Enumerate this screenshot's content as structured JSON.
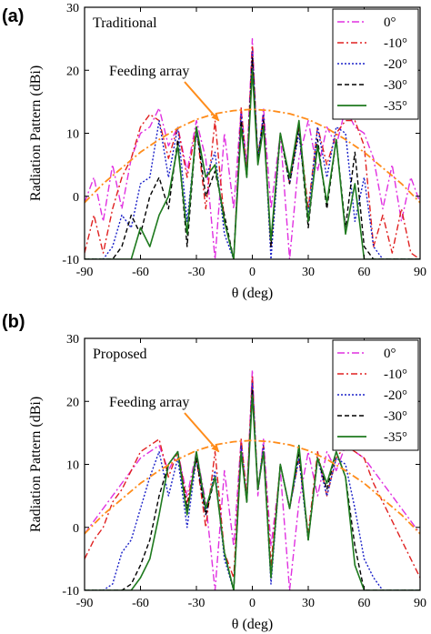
{
  "chart_data": [
    {
      "type": "line",
      "panel_label": "(a)",
      "title": "Traditional",
      "xlabel": "θ (deg)",
      "ylabel": "Radiation Pattern (dBi)",
      "xlim": [
        -90,
        90
      ],
      "ylim": [
        -10,
        30
      ],
      "xticks": [
        "-90",
        "-60",
        "-30",
        "0",
        "30",
        "60",
        "90"
      ],
      "yticks": [
        "-10",
        "0",
        "10",
        "20",
        "30"
      ],
      "legend_position": "top-right",
      "grid": false,
      "annotation": {
        "text": "Feeding array",
        "arrow_to": [
          -18,
          12
        ]
      },
      "series": [
        {
          "name": "0°",
          "color": "#e030e0",
          "dash": "8,3,2,3",
          "x": [
            -90,
            -85,
            -80,
            -75,
            -70,
            -65,
            -60,
            -55,
            -50,
            -45,
            -40,
            -35,
            -30,
            -25,
            -20,
            -15,
            -10,
            -6,
            -3,
            0,
            3,
            6,
            10,
            15,
            20,
            25,
            30,
            35,
            40,
            45,
            50,
            55,
            60,
            65,
            70,
            75,
            80,
            85,
            90
          ],
          "y": [
            -1,
            3,
            -4,
            5,
            -2,
            6,
            10,
            11,
            14,
            8,
            11,
            4,
            12,
            6,
            -10,
            10,
            -2,
            14,
            5,
            25,
            5,
            14,
            -2,
            10,
            -10,
            6,
            12,
            4,
            11,
            8,
            14,
            11,
            10,
            6,
            -2,
            5,
            -4,
            3,
            -1
          ]
        },
        {
          "name": "-10°",
          "color": "#e02020",
          "dash": "7,3,2,3",
          "x": [
            -90,
            -85,
            -80,
            -75,
            -70,
            -65,
            -60,
            -55,
            -50,
            -45,
            -40,
            -35,
            -30,
            -25,
            -20,
            -15,
            -10,
            -6,
            -3,
            0,
            3,
            6,
            10,
            15,
            20,
            25,
            30,
            35,
            40,
            45,
            50,
            55,
            60,
            65,
            70,
            75,
            80,
            85,
            90
          ],
          "y": [
            -9,
            -3,
            -9,
            -2,
            3,
            6,
            11,
            13,
            12,
            6,
            11,
            3,
            11,
            -2,
            12,
            -4,
            -10,
            14,
            4,
            24,
            6,
            13,
            -8,
            10,
            2,
            11,
            -2,
            11,
            5,
            10,
            12,
            12,
            8,
            -8,
            -3,
            -9,
            -2,
            -9,
            -10
          ]
        },
        {
          "name": "-20°",
          "color": "#1a20c8",
          "dash": "2,2",
          "x": [
            -90,
            -85,
            -80,
            -75,
            -70,
            -65,
            -60,
            -55,
            -50,
            -45,
            -40,
            -35,
            -30,
            -25,
            -20,
            -15,
            -10,
            -6,
            -3,
            0,
            3,
            6,
            10,
            15,
            20,
            25,
            30,
            35,
            40,
            45,
            50,
            55,
            60,
            65,
            70,
            75,
            80,
            85,
            90
          ],
          "y": [
            -10,
            -10,
            -10,
            -8,
            -3,
            -5,
            2,
            3,
            12,
            3,
            11,
            -4,
            10,
            3,
            7,
            -6,
            -10,
            13,
            3,
            23,
            6,
            13,
            -10,
            10,
            2,
            10,
            -3,
            11,
            3,
            11,
            10,
            -4,
            3,
            -8,
            -10,
            -10,
            -10,
            -10,
            -10
          ]
        },
        {
          "name": "-30°",
          "color": "#000000",
          "dash": "5,3",
          "x": [
            -90,
            -85,
            -80,
            -75,
            -70,
            -65,
            -60,
            -55,
            -50,
            -45,
            -40,
            -35,
            -30,
            -25,
            -20,
            -15,
            -10,
            -6,
            -3,
            0,
            3,
            6,
            10,
            15,
            20,
            25,
            30,
            35,
            40,
            45,
            50,
            55,
            60,
            65,
            70,
            75,
            80,
            85,
            90
          ],
          "y": [
            -10,
            -10,
            -10,
            -10,
            -8,
            -3,
            -6,
            0,
            3,
            -2,
            9,
            -8,
            11,
            0,
            4,
            -3,
            -10,
            12,
            3,
            22,
            6,
            12,
            -8,
            10,
            2,
            11,
            -5,
            9,
            -2,
            9,
            -5,
            7,
            -8,
            -10,
            -10,
            -10,
            -10,
            -10,
            -10
          ]
        },
        {
          "name": "-35°",
          "color": "#1e7a1e",
          "dash": "",
          "x": [
            -90,
            -85,
            -80,
            -75,
            -70,
            -65,
            -60,
            -55,
            -50,
            -45,
            -40,
            -35,
            -30,
            -25,
            -20,
            -15,
            -10,
            -6,
            -3,
            0,
            3,
            6,
            10,
            15,
            20,
            25,
            30,
            35,
            40,
            45,
            50,
            55,
            60,
            65,
            70,
            75,
            80,
            85,
            90
          ],
          "y": [
            -10,
            -10,
            -10,
            -10,
            -10,
            -10,
            -5,
            -8,
            -3,
            0,
            8,
            -6,
            11,
            3,
            5,
            -4,
            -10,
            11,
            3,
            20,
            5,
            11,
            -7,
            10,
            3,
            12,
            -4,
            8,
            -1,
            9,
            -6,
            2,
            -10,
            -10,
            -10,
            -10,
            -10,
            -10,
            -10
          ]
        },
        {
          "name": "",
          "color": "#ff8c1a",
          "dash": "8,3,2,3",
          "x": [
            -90,
            -80,
            -70,
            -60,
            -50,
            -40,
            -30,
            -20,
            -10,
            0,
            10,
            20,
            30,
            40,
            50,
            60,
            70,
            80,
            90
          ],
          "y": [
            -1,
            2,
            4.5,
            7,
            9,
            10.8,
            12.2,
            13.1,
            13.6,
            13.8,
            13.6,
            13.1,
            12.2,
            10.8,
            9,
            7,
            4.5,
            2,
            -1
          ]
        }
      ]
    },
    {
      "type": "line",
      "panel_label": "(b)",
      "title": "Proposed",
      "xlabel": "θ (deg)",
      "ylabel": "Radiation Pattern (dBi)",
      "xlim": [
        -90,
        90
      ],
      "ylim": [
        -10,
        30
      ],
      "xticks": [
        "-90",
        "-60",
        "-30",
        "0",
        "30",
        "60",
        "90"
      ],
      "yticks": [
        "-10",
        "0",
        "10",
        "20",
        "30"
      ],
      "legend_position": "top-right",
      "grid": false,
      "annotation": {
        "text": "Feeding array",
        "arrow_to": [
          -18,
          12
        ]
      },
      "series": [
        {
          "name": "0°",
          "color": "#e030e0",
          "dash": "8,3,2,3",
          "x": [
            -90,
            -85,
            -80,
            -75,
            -70,
            -65,
            -60,
            -55,
            -50,
            -45,
            -40,
            -35,
            -30,
            -25,
            -20,
            -15,
            -10,
            -6,
            -3,
            0,
            3,
            6,
            10,
            15,
            20,
            25,
            30,
            35,
            40,
            45,
            50,
            55,
            60,
            65,
            70,
            75,
            80,
            85,
            90
          ],
          "y": [
            -1,
            1,
            3,
            5,
            7,
            9,
            11,
            12,
            13,
            9,
            12,
            5,
            12,
            4,
            -10,
            9,
            -3,
            14,
            5,
            25,
            5,
            14,
            -3,
            9,
            -10,
            4,
            12,
            5,
            12,
            9,
            13,
            12,
            11,
            9,
            7,
            5,
            3,
            1,
            -1
          ]
        },
        {
          "name": "-10°",
          "color": "#e02020",
          "dash": "7,3,2,3",
          "x": [
            -90,
            -85,
            -80,
            -75,
            -70,
            -65,
            -60,
            -55,
            -50,
            -45,
            -40,
            -35,
            -30,
            -25,
            -20,
            -15,
            -10,
            -6,
            -3,
            0,
            3,
            6,
            10,
            15,
            20,
            25,
            30,
            35,
            40,
            45,
            50,
            55,
            60,
            65,
            70,
            75,
            80,
            85,
            90
          ],
          "y": [
            -5,
            -2,
            0,
            4,
            6,
            9,
            12,
            13,
            14,
            8,
            12,
            4,
            11,
            0,
            12,
            -4,
            -8,
            14,
            5,
            24,
            6,
            13,
            -6,
            10,
            3,
            11,
            -1,
            12,
            5,
            11,
            13,
            12,
            11,
            7,
            4,
            1,
            -2,
            -5,
            -8
          ]
        },
        {
          "name": "-20°",
          "color": "#1a20c8",
          "dash": "2,2",
          "x": [
            -90,
            -85,
            -80,
            -75,
            -70,
            -65,
            -60,
            -55,
            -50,
            -45,
            -40,
            -35,
            -30,
            -25,
            -20,
            -15,
            -10,
            -6,
            -3,
            0,
            3,
            6,
            10,
            15,
            20,
            25,
            30,
            35,
            40,
            45,
            50,
            55,
            60,
            65,
            70,
            75,
            80,
            85,
            90
          ],
          "y": [
            -10,
            -10,
            -10,
            -9,
            -4,
            -2,
            3,
            8,
            12,
            5,
            11,
            0,
            11,
            2,
            9,
            -5,
            -10,
            13,
            4,
            23,
            6,
            13,
            -9,
            10,
            3,
            11,
            -2,
            11,
            5,
            11,
            10,
            3,
            -5,
            -8,
            -10,
            -10,
            -10,
            -10,
            -10
          ]
        },
        {
          "name": "-30°",
          "color": "#000000",
          "dash": "5,3",
          "x": [
            -90,
            -85,
            -80,
            -75,
            -70,
            -65,
            -60,
            -55,
            -50,
            -45,
            -40,
            -35,
            -30,
            -25,
            -20,
            -15,
            -10,
            -6,
            -3,
            0,
            3,
            6,
            10,
            15,
            20,
            25,
            30,
            35,
            40,
            45,
            50,
            55,
            60,
            65,
            70,
            75,
            80,
            85,
            90
          ],
          "y": [
            -10,
            -10,
            -10,
            -10,
            -10,
            -9,
            -6,
            -2,
            5,
            10,
            12,
            3,
            11,
            2,
            8,
            -4,
            -10,
            12,
            4,
            22,
            6,
            12,
            -8,
            10,
            3,
            12,
            -2,
            11,
            6,
            12,
            8,
            -3,
            -10,
            -10,
            -10,
            -10,
            -10,
            -10,
            -10
          ]
        },
        {
          "name": "-35°",
          "color": "#1e7a1e",
          "dash": "",
          "x": [
            -90,
            -85,
            -80,
            -75,
            -70,
            -65,
            -60,
            -55,
            -50,
            -45,
            -40,
            -35,
            -30,
            -25,
            -20,
            -15,
            -10,
            -6,
            -3,
            0,
            3,
            6,
            10,
            15,
            20,
            25,
            30,
            35,
            40,
            45,
            50,
            55,
            60,
            65,
            70,
            75,
            80,
            85,
            90
          ],
          "y": [
            -10,
            -10,
            -10,
            -10,
            -10,
            -10,
            -8,
            -5,
            2,
            10,
            12,
            2,
            12,
            3,
            8,
            -4,
            -10,
            12,
            4,
            21,
            6,
            12,
            -8,
            10,
            3,
            13,
            -2,
            11,
            7,
            12,
            8,
            -6,
            -10,
            -10,
            -10,
            -10,
            -10,
            -10,
            -10
          ]
        },
        {
          "name": "",
          "color": "#ff8c1a",
          "dash": "8,3,2,3",
          "x": [
            -90,
            -80,
            -70,
            -60,
            -50,
            -40,
            -30,
            -20,
            -10,
            0,
            10,
            20,
            30,
            40,
            50,
            60,
            70,
            80,
            90
          ],
          "y": [
            -1,
            2,
            4.5,
            7,
            9,
            10.8,
            12.2,
            13.1,
            13.6,
            13.8,
            13.6,
            13.1,
            12.2,
            10.8,
            9,
            7,
            4.5,
            2,
            -1
          ]
        }
      ]
    }
  ]
}
